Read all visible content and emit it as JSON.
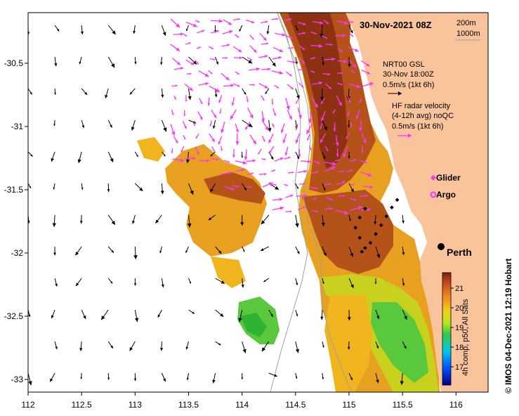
{
  "map": {
    "title": "30-Nov-2021 08Z",
    "x_ticks": [
      "112",
      "112.5",
      "113",
      "113.5",
      "114",
      "114.5",
      "115",
      "115.5",
      "116"
    ],
    "y_ticks": [
      "-30.5",
      "-31",
      "-31.5",
      "-32",
      "-32.5",
      "-33"
    ],
    "lon_range": [
      112,
      116.3
    ],
    "lat_range": [
      -33.1,
      -30.1
    ]
  },
  "legend": {
    "isobath_200": "200m",
    "isobath_1000": "1000m",
    "gsl_title": "NRT00 GSL",
    "gsl_date": "30-Nov 18:00Z",
    "gsl_scale": "0.5m/s (1kt 6h)",
    "hf_line1": "HF radar velocity",
    "hf_line2": "(4-12h avg) noQC",
    "hf_scale": "0.5m/s (1kt 6h)",
    "glider_label": "Glider",
    "argo_label": "Argo",
    "city_label": "Perth"
  },
  "colorbar": {
    "ticks": [
      "21",
      "20",
      "19",
      "18",
      "17"
    ],
    "label": "4h comp, p50, All Sats"
  },
  "credit": "© IMOS 04-Dec-2021 12:19 Hobart",
  "colors": {
    "land": "#f9c49c",
    "gsl_arrow": "#000000",
    "hf_arrow": "#ff33ff",
    "warm": "#a84a14",
    "cool": "#3fc23a"
  },
  "markers": {
    "glider_track": [
      [
        115.45,
        -31.58
      ],
      [
        115.4,
        -31.64
      ],
      [
        115.35,
        -31.71
      ],
      [
        115.3,
        -31.78
      ],
      [
        115.25,
        -31.85
      ],
      [
        115.2,
        -31.92
      ],
      [
        115.15,
        -31.96
      ],
      [
        115.1,
        -31.88
      ],
      [
        115.06,
        -31.8
      ],
      [
        115.1,
        -31.72
      ],
      [
        115.15,
        -31.65
      ],
      [
        115.12,
        -31.99
      ]
    ],
    "city": [
      115.86,
      -31.95
    ]
  }
}
